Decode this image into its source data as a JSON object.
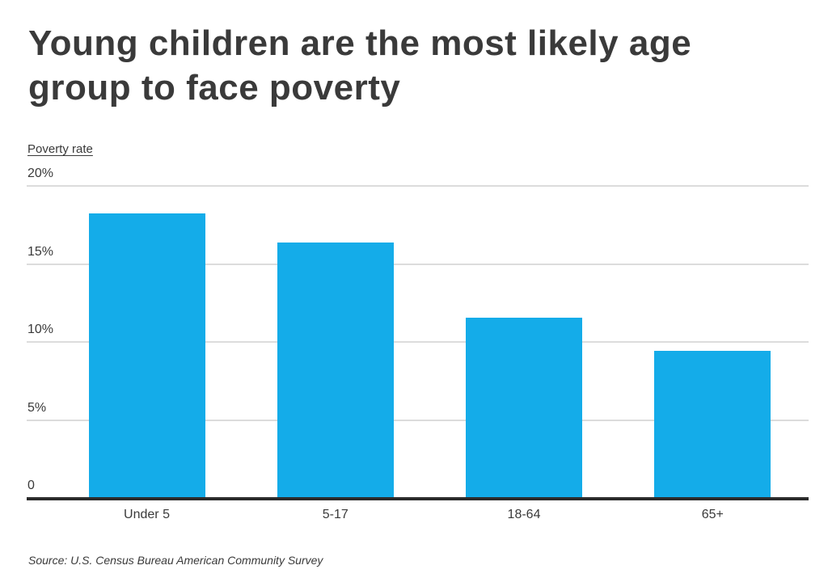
{
  "title": "Young children are the most likely age group to face poverty",
  "axis_label": "Poverty rate",
  "source": {
    "full": "Source:  U.S. Census Bureau American Community Survey"
  },
  "colors": {
    "bar": "#14ace9",
    "gridline": "#dcdcdc",
    "axis_line": "#2b2b2b",
    "text": "#3a3a3a"
  },
  "chart_data": {
    "type": "bar",
    "categories": [
      "Under 5",
      "5-17",
      "18-64",
      "65+"
    ],
    "values": [
      18.2,
      16.3,
      11.5,
      9.4
    ],
    "title": "Young children are the most likely age group to face poverty",
    "xlabel": "",
    "ylabel": "Poverty rate",
    "ylim": [
      0,
      20
    ],
    "yticks": [
      {
        "value": 20,
        "label": "20%"
      },
      {
        "value": 15,
        "label": "15%"
      },
      {
        "value": 10,
        "label": "10%"
      },
      {
        "value": 5,
        "label": "5%"
      },
      {
        "value": 0,
        "label": "0"
      }
    ],
    "grid": true,
    "legend": false
  }
}
